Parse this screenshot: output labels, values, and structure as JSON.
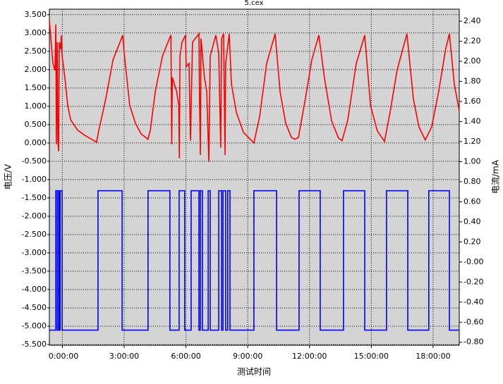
{
  "chart_data": {
    "type": "line",
    "title": "5.cex",
    "xlabel": "测试时间",
    "ylabel": "电压/V",
    "y2label": "电流/mA",
    "xlim": [
      -0.63,
      19.27
    ],
    "xticks": [
      {
        "value": 0,
        "label": "0:00:00"
      },
      {
        "value": 3,
        "label": "3:00:00"
      },
      {
        "value": 6,
        "label": "6:00:00"
      },
      {
        "value": 9,
        "label": "9:00:00"
      },
      {
        "value": 12,
        "label": "12:00:00"
      },
      {
        "value": 15,
        "label": "15:00:00"
      },
      {
        "value": 18,
        "label": "18:00:00"
      }
    ],
    "ylim": [
      -5.52,
      3.65
    ],
    "yticks": [
      {
        "value": 3.5,
        "label": "3.500"
      },
      {
        "value": 3,
        "label": "3.000"
      },
      {
        "value": 2.5,
        "label": "2.500"
      },
      {
        "value": 2,
        "label": "2.000"
      },
      {
        "value": 1.5,
        "label": "1.500"
      },
      {
        "value": 1,
        "label": "1.000"
      },
      {
        "value": 0.5,
        "label": "0.500"
      },
      {
        "value": 0,
        "label": "0.000"
      },
      {
        "value": -0.5,
        "label": "-0.500"
      },
      {
        "value": -1,
        "label": "-1.000"
      },
      {
        "value": -1.5,
        "label": "-1.500"
      },
      {
        "value": -2,
        "label": "-2.000"
      },
      {
        "value": -2.5,
        "label": "-2.500"
      },
      {
        "value": -3,
        "label": "-3.000"
      },
      {
        "value": -3.5,
        "label": "-3.500"
      },
      {
        "value": -4,
        "label": "-4.000"
      },
      {
        "value": -4.5,
        "label": "-4.500"
      },
      {
        "value": -5,
        "label": "-5.000"
      },
      {
        "value": -5.5,
        "label": "-5.500"
      }
    ],
    "y2lim": [
      -0.83,
      2.52
    ],
    "y2ticks": [
      {
        "value": 2.4,
        "label": "2.40"
      },
      {
        "value": 2.2,
        "label": "2.20"
      },
      {
        "value": 2,
        "label": "2.00"
      },
      {
        "value": 1.8,
        "label": "1.80"
      },
      {
        "value": 1.6,
        "label": "1.60"
      },
      {
        "value": 1.4,
        "label": "1.40"
      },
      {
        "value": 1.2,
        "label": "1.20"
      },
      {
        "value": 1,
        "label": "1.00"
      },
      {
        "value": 0.8,
        "label": "0.80"
      },
      {
        "value": 0.6,
        "label": "0.60"
      },
      {
        "value": 0.4,
        "label": "0.40"
      },
      {
        "value": 0.2,
        "label": "0.20"
      },
      {
        "value": 0,
        "label": "-0.00"
      },
      {
        "value": -0.2,
        "label": "-0.20"
      },
      {
        "value": -0.4,
        "label": "-0.40"
      },
      {
        "value": -0.6,
        "label": "-0.60"
      },
      {
        "value": -0.8,
        "label": "-0.80"
      }
    ],
    "grid": true,
    "series": [
      {
        "color": "#ff0000",
        "axis": "y",
        "x": [
          -0.63,
          -0.46,
          -0.36,
          -0.32,
          -0.29,
          -0.25,
          -0.22,
          -0.18,
          -0.15,
          -0.08,
          -0.05,
          -0.01,
          0.12,
          0.26,
          0.4,
          0.74,
          1.08,
          1.42,
          1.66,
          1.77,
          2.11,
          2.46,
          2.8,
          2.93,
          3.0,
          3.27,
          3.55,
          3.82,
          4.16,
          4.27,
          4.51,
          4.86,
          5.2,
          5.27,
          5.31,
          5.34,
          5.55,
          5.65,
          5.68,
          5.71,
          5.81,
          5.98,
          6.01,
          6.15,
          6.22,
          6.32,
          6.63,
          6.66,
          6.7,
          6.73,
          6.9,
          7.01,
          7.11,
          7.18,
          7.45,
          7.59,
          7.69,
          7.73,
          7.83,
          7.9,
          7.93,
          8.1,
          8.21,
          8.45,
          8.79,
          9.3,
          9.58,
          9.92,
          10.33,
          10.57,
          10.84,
          11.12,
          11.29,
          11.46,
          11.8,
          12.11,
          12.45,
          12.72,
          13.07,
          13.41,
          13.58,
          13.86,
          14.27,
          14.68,
          14.96,
          15.29,
          15.64,
          15.91,
          16.25,
          16.73,
          17.04,
          17.31,
          17.62,
          17.93,
          18.27,
          18.61,
          18.79,
          19.03,
          19.27
        ],
        "values": [
          3.33,
          2.17,
          1.98,
          3.23,
          -0.04,
          2.75,
          0.06,
          -0.23,
          2.75,
          2.56,
          2.94,
          2.37,
          1.79,
          1.02,
          0.63,
          0.35,
          0.21,
          0.1,
          0.02,
          0.35,
          1.21,
          2.27,
          2.75,
          2.94,
          2.46,
          1.02,
          0.54,
          0.25,
          0.1,
          0.35,
          1.4,
          2.37,
          2.85,
          2.94,
          -0.04,
          1.79,
          1.4,
          1.02,
          -0.42,
          2.37,
          2.75,
          2.94,
          2.08,
          2.17,
          0.06,
          2.75,
          2.98,
          1.21,
          -0.33,
          2.85,
          1.79,
          1.4,
          -0.52,
          2.37,
          2.94,
          2.46,
          -0.13,
          2.85,
          2.98,
          -0.33,
          2.17,
          2.98,
          1.6,
          0.83,
          0.29,
          0.0,
          0.73,
          2.17,
          2.98,
          1.4,
          0.54,
          0.15,
          0.1,
          0.15,
          1.21,
          2.27,
          2.94,
          1.79,
          0.6,
          0.13,
          0.06,
          0.63,
          2.17,
          2.94,
          1.02,
          0.33,
          0.04,
          0.83,
          1.98,
          2.98,
          1.21,
          0.44,
          0.08,
          0.44,
          1.4,
          2.56,
          2.98,
          1.6,
          0.87
        ]
      },
      {
        "color": "#0000ff",
        "axis": "y2",
        "x": [
          -0.63,
          -0.32,
          -0.32,
          -0.25,
          -0.25,
          -0.18,
          -0.18,
          -0.15,
          -0.15,
          -0.11,
          -0.11,
          -0.01,
          -0.01,
          1.73,
          1.73,
          2.9,
          2.9,
          4.16,
          4.16,
          5.22,
          5.22,
          5.67,
          5.67,
          5.94,
          5.94,
          6.25,
          6.25,
          6.63,
          6.63,
          6.7,
          6.7,
          6.8,
          6.8,
          7.08,
          7.08,
          7.18,
          7.18,
          7.59,
          7.59,
          7.73,
          7.73,
          7.8,
          7.8,
          7.93,
          7.93,
          8.03,
          8.03,
          8.14,
          8.14,
          9.3,
          9.3,
          10.4,
          10.4,
          11.49,
          11.49,
          12.52,
          12.52,
          13.65,
          13.65,
          14.68,
          14.68,
          15.74,
          15.74,
          16.77,
          16.77,
          17.79,
          17.79,
          18.79,
          18.79,
          19.27
        ],
        "values": [
          -0.68,
          -0.68,
          0.71,
          0.71,
          -0.68,
          -0.68,
          0.71,
          0.71,
          -0.68,
          -0.68,
          0.71,
          0.71,
          -0.68,
          -0.68,
          0.71,
          0.71,
          -0.68,
          -0.68,
          0.71,
          0.71,
          -0.68,
          -0.68,
          0.71,
          0.71,
          -0.68,
          -0.68,
          0.71,
          0.71,
          -0.68,
          -0.68,
          0.71,
          0.71,
          -0.68,
          -0.68,
          0.71,
          0.71,
          -0.68,
          -0.68,
          0.71,
          0.71,
          -0.68,
          -0.68,
          0.71,
          0.71,
          -0.68,
          -0.68,
          0.71,
          0.71,
          -0.68,
          -0.68,
          0.71,
          0.71,
          -0.68,
          -0.68,
          0.71,
          0.71,
          -0.68,
          -0.68,
          0.71,
          0.71,
          -0.68,
          -0.68,
          0.71,
          0.71,
          -0.68,
          -0.68,
          0.71,
          0.71,
          -0.68,
          -0.68
        ]
      }
    ]
  }
}
